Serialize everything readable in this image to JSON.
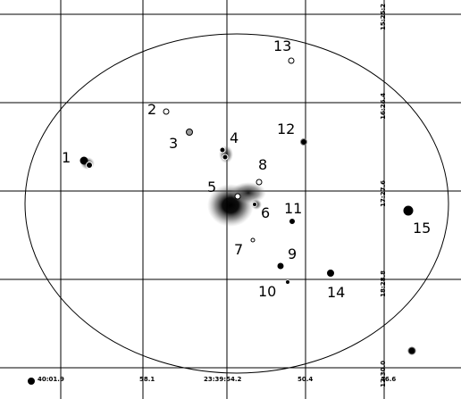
{
  "colors": {
    "background": "#ffffff",
    "grid": "#000000",
    "ink": "#000000"
  },
  "chart_data": {
    "type": "scatter",
    "title": "",
    "description_of_axes": "RA ticks along bottom, Dec ticks along right edge",
    "ra_ticks": [
      "40:01.9",
      "58.1",
      "23:39:54.2",
      "50.4",
      "46.6"
    ],
    "dec_ticks": [
      "15:25:2",
      "16:26.4",
      "17:27.6",
      "18:28.8",
      "12:30.0"
    ],
    "sources": [
      {
        "label": "1"
      },
      {
        "label": "2"
      },
      {
        "label": "3"
      },
      {
        "label": "4"
      },
      {
        "label": "5"
      },
      {
        "label": "6"
      },
      {
        "label": "7"
      },
      {
        "label": "8"
      },
      {
        "label": "9"
      },
      {
        "label": "10"
      },
      {
        "label": "11"
      },
      {
        "label": "12"
      },
      {
        "label": "13"
      },
      {
        "label": "14"
      },
      {
        "label": "15"
      }
    ]
  }
}
